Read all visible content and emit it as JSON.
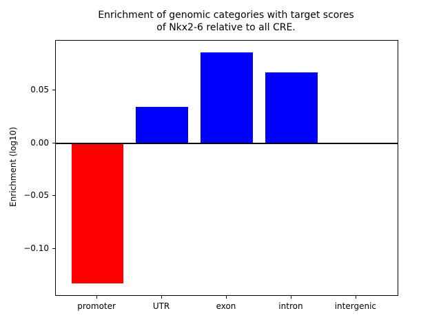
{
  "chart_data": {
    "type": "bar",
    "title": "Enrichment of genomic categories with target scores\nof Nkx2-6 relative to all CRE.",
    "title_lines": [
      "Enrichment of genomic categories with target scores",
      "of Nkx2-6 relative to all CRE."
    ],
    "xlabel": "",
    "ylabel": "Enrichment (log10)",
    "categories": [
      "promoter",
      "UTR",
      "exon",
      "intron",
      "intergenic"
    ],
    "values": [
      -0.133,
      0.034,
      0.086,
      0.067,
      0.0
    ],
    "colors": [
      "#ff0000",
      "#0000ff",
      "#0000ff",
      "#0000ff",
      "#0000ff"
    ],
    "ylim": [
      -0.144,
      0.097
    ],
    "yticks": [
      {
        "value": 0.05,
        "label": "0.05"
      },
      {
        "value": 0.0,
        "label": "0.00"
      },
      {
        "value": -0.05,
        "label": "−0.05"
      },
      {
        "value": -0.1,
        "label": "−0.10"
      }
    ],
    "grid": false,
    "zero_line": true,
    "legend": null,
    "bar_relative_width": 0.8
  }
}
